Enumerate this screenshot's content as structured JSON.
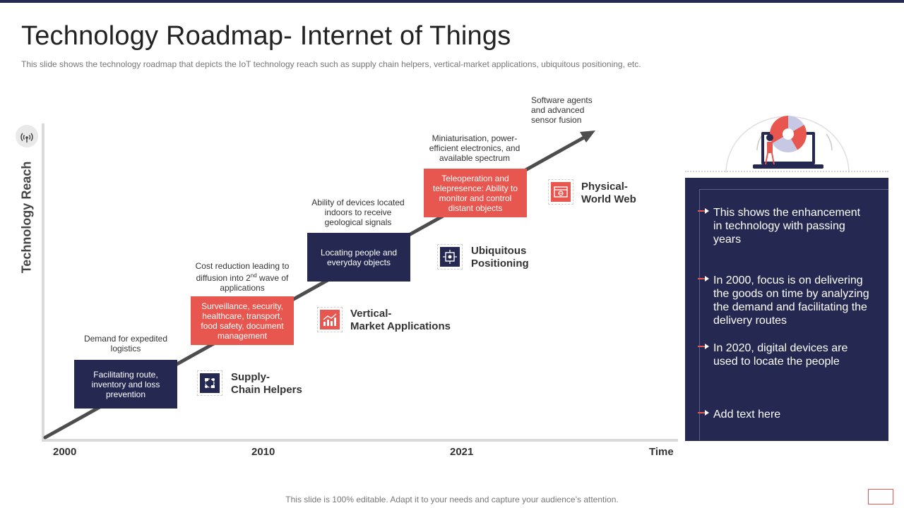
{
  "header": {
    "title": "Technology Roadmap- Internet of Things",
    "subtitle": "This slide shows the technology roadmap that depicts the IoT technology reach such as supply chain helpers, vertical-market  applications, ubiquitous positioning, etc."
  },
  "axis": {
    "y_label": "Technology Reach",
    "x_labels": [
      "2000",
      "2010",
      "2021",
      "Time"
    ]
  },
  "steps": [
    {
      "annotation": "Demand for expedited logistics",
      "box": "Facilitating route, inventory and loss prevention",
      "label": "Supply-\nChain Helpers",
      "icon": "supply-chain-icon"
    },
    {
      "annotation_main": "Cost reduction leading to diffusion into 2",
      "annotation_sup": "nd",
      "annotation_tail": "wave of applications",
      "box": "Surveillance, security, healthcare, transport, food safety, document management",
      "label": "Vertical-\nMarket Applications",
      "icon": "growth-chart-icon"
    },
    {
      "annotation": "Ability of devices located indoors to receive geological signals",
      "box": "Locating people and everyday objects",
      "label": "Ubiquitous\nPositioning",
      "icon": "positioning-icon"
    },
    {
      "annotation": "Miniaturisation, power-efficient electronics, and available spectrum",
      "box": "Teleoperation and telepresence: Ability to monitor and control distant objects",
      "label": "Physical-\nWorld Web",
      "icon": "web-icon"
    }
  ],
  "top_annotation": "Software agents and advanced sensor fusion",
  "panel": {
    "points": [
      "This shows the enhancement  in technology with passing years",
      "In 2000, focus is on delivering the goods on time by analyzing the demand and facilitating the delivery routes",
      "In 2020, digital devices are used to locate the people",
      "Add text here"
    ]
  },
  "footer": "This slide is 100% editable. Adapt it to your needs and capture your audience’s attention.",
  "colors": {
    "navy": "#252850",
    "red": "#e7564f",
    "axis": "#dadada",
    "trend": "#4d4d4d"
  }
}
